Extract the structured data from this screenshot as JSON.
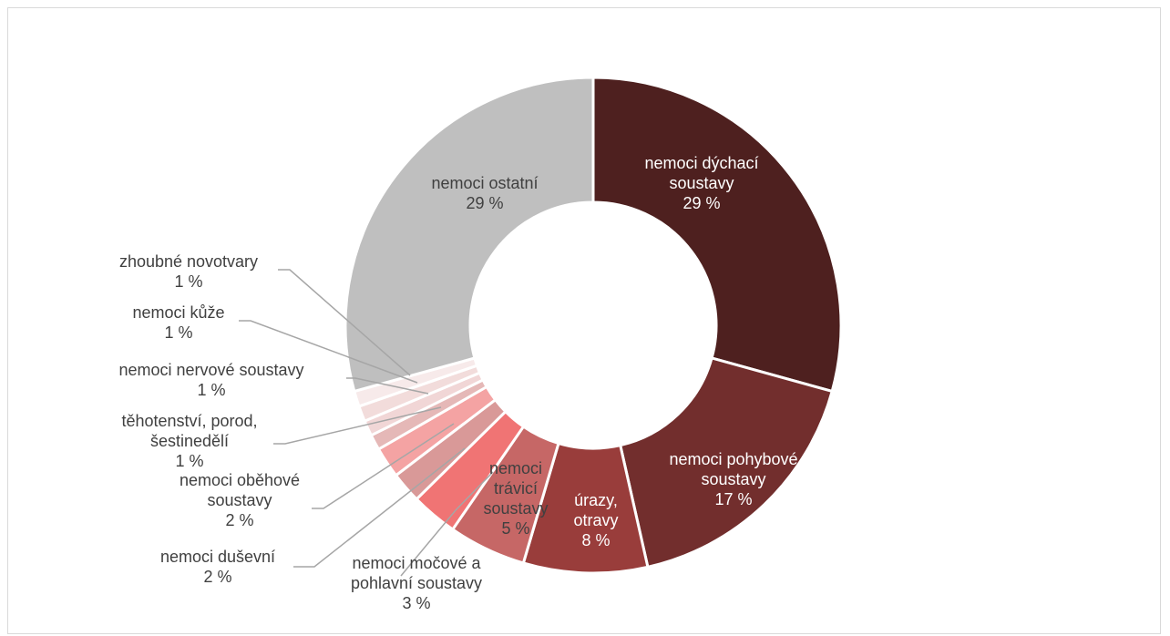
{
  "chart_data": {
    "type": "pie",
    "variant": "donut",
    "title": "",
    "categories": [
      "nemoci dýchací soustavy",
      "nemoci pohybové soustavy",
      "úrazy, otravy",
      "nemoci trávicí soustavy",
      "nemoci močové a pohlavní soustavy",
      "nemoci duševní",
      "nemoci oběhové soustavy",
      "těhotenství, porod, šestinedělí",
      "nemoci nervové soustavy",
      "nemoci kůže",
      "zhoubné novotvary",
      "nemoci ostatní"
    ],
    "values": [
      29,
      17,
      8,
      5,
      3,
      2,
      2,
      1,
      1,
      1,
      1,
      29
    ],
    "percent_labels": [
      "29 %",
      "17 %",
      "8 %",
      "5 %",
      "3 %",
      "2 %",
      "2 %",
      "1 %",
      "1 %",
      "1 %",
      "1 %",
      "29 %"
    ],
    "label_lines": [
      [
        "nemoci dýchací",
        "soustavy"
      ],
      [
        "nemoci pohybové",
        "soustavy"
      ],
      [
        "úrazy,",
        "otravy"
      ],
      [
        "nemoci",
        "trávicí",
        "soustavy"
      ],
      [
        "nemoci močové a",
        "pohlavní soustavy"
      ],
      [
        "nemoci duševní"
      ],
      [
        "nemoci oběhové",
        "soustavy"
      ],
      [
        "těhotenství, porod,",
        "šestinedělí"
      ],
      [
        "nemoci nervové soustavy"
      ],
      [
        "nemoci kůže"
      ],
      [
        "zhoubné novotvary"
      ],
      [
        "nemoci ostatní"
      ]
    ],
    "colors": [
      "#4e201f",
      "#722e2d",
      "#993d3b",
      "#c66766",
      "#f07474",
      "#d99998",
      "#f4a3a3",
      "#e5b8b7",
      "#f1d6d6",
      "#f2dcdb",
      "#f7eaea",
      "#bfbfbf"
    ],
    "legend": "none"
  }
}
